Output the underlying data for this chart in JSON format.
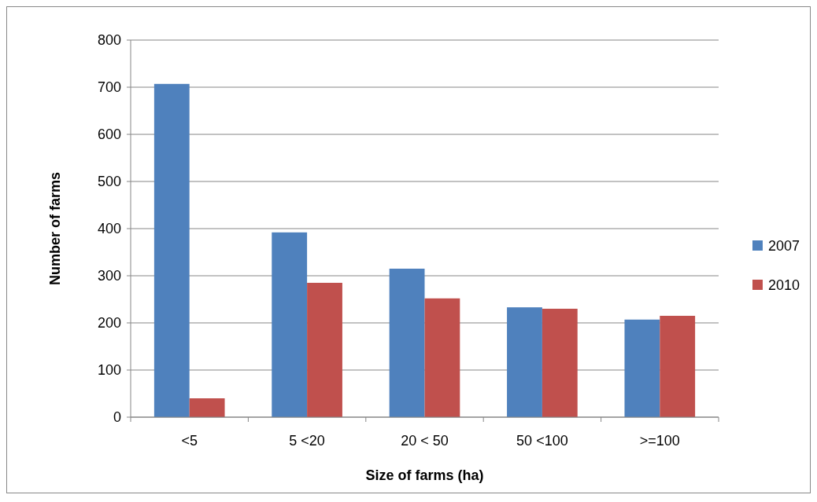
{
  "chart_data": {
    "type": "bar",
    "xlabel": "Size of farms (ha)",
    "ylabel": "Number of farms",
    "categories": [
      "<5",
      "5 <20",
      "20 < 50",
      "50 <100",
      ">=100"
    ],
    "series": [
      {
        "name": "2007",
        "color": "#4f81bd",
        "values": [
          707,
          392,
          315,
          233,
          207
        ]
      },
      {
        "name": "2010",
        "color": "#c0504d",
        "values": [
          40,
          285,
          252,
          230,
          215
        ]
      }
    ],
    "ylim": [
      0,
      800
    ],
    "yticks": [
      0,
      100,
      200,
      300,
      400,
      500,
      600,
      700,
      800
    ],
    "grid": "y",
    "legend": "right"
  }
}
